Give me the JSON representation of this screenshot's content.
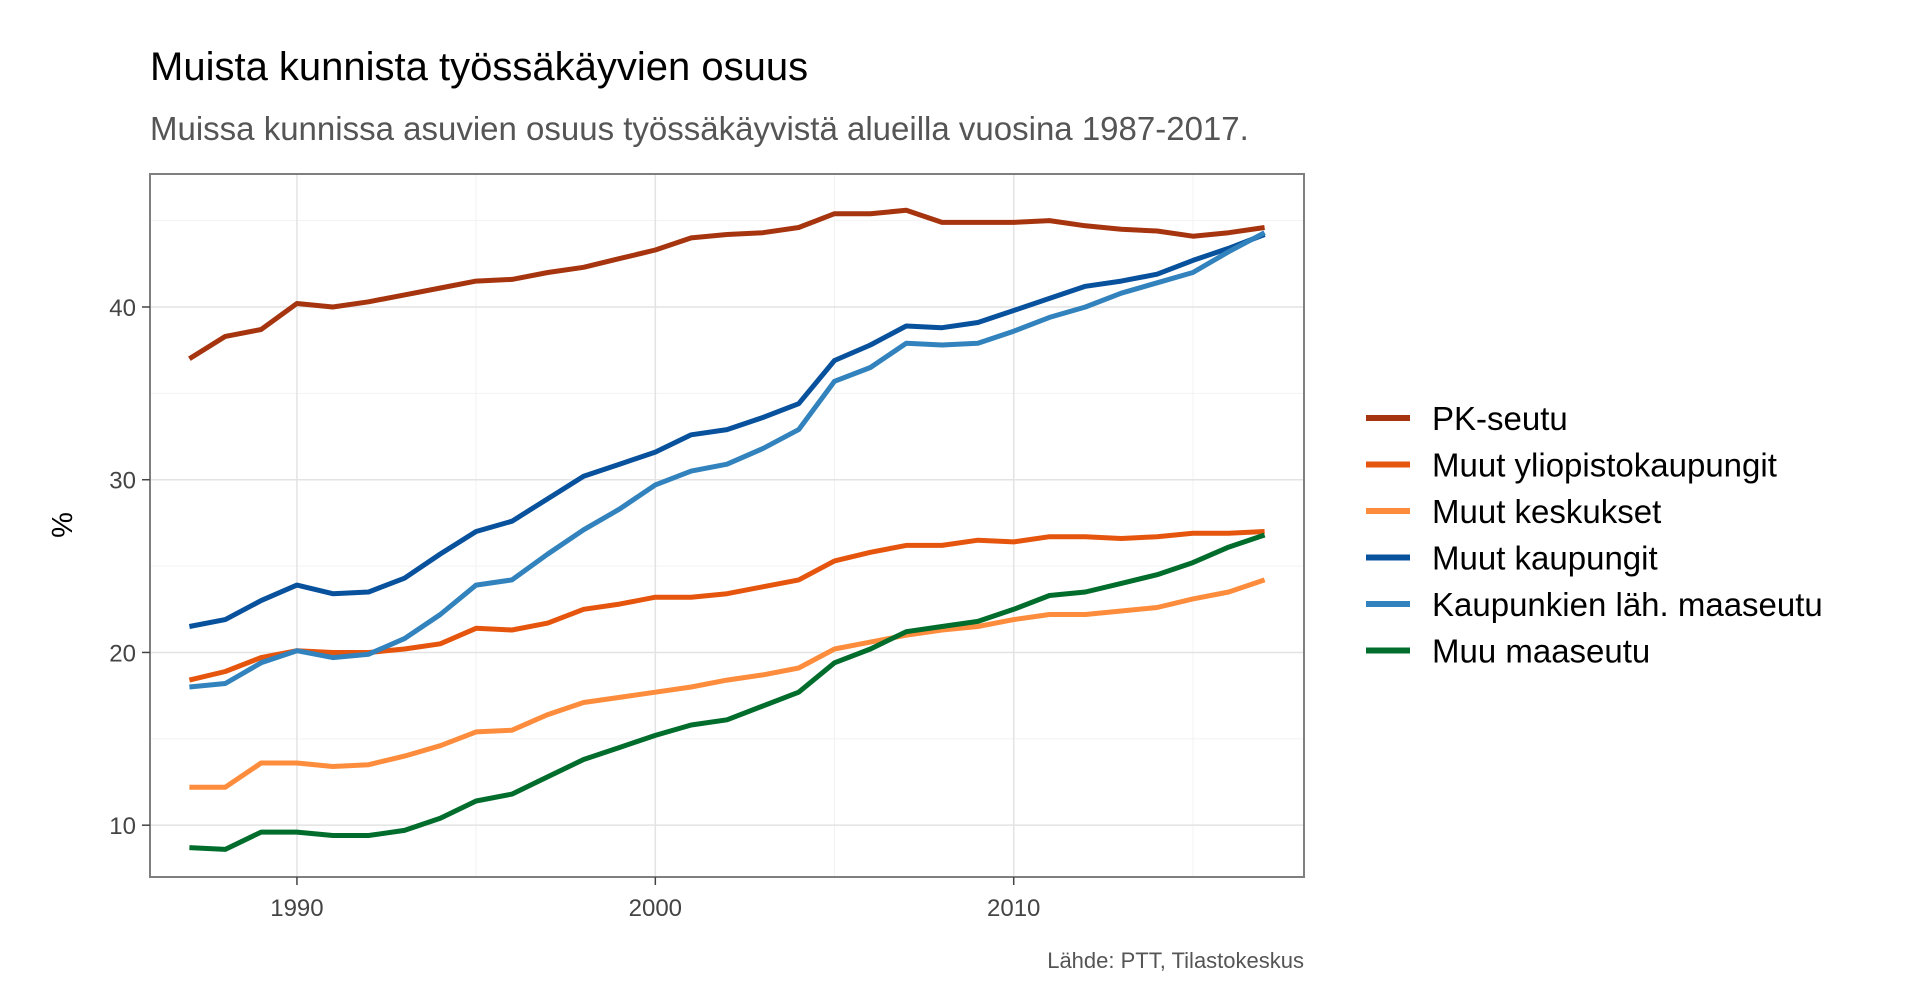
{
  "chart_data": {
    "type": "line",
    "title": "Muista kunnista työssäkäyvien osuus",
    "subtitle": "Muissa kunnissa asuvien osuus työssäkäyvistä alueilla vuosina 1987-2017.",
    "ylabel": "%",
    "xlabel": "",
    "caption": "Lähde: PTT, Tilastokeskus",
    "xlim": [
      1985.9,
      2018.1
    ],
    "ylim": [
      7,
      47.7
    ],
    "xticks": [
      1990,
      2000,
      2010
    ],
    "xtick_labels": [
      "1990",
      "2000",
      "2010"
    ],
    "yticks": [
      10,
      20,
      30,
      40
    ],
    "ytick_labels": [
      "10",
      "20",
      "30",
      "40"
    ],
    "grid": true,
    "legend": "right",
    "x": [
      1987,
      1988,
      1989,
      1990,
      1991,
      1992,
      1993,
      1994,
      1995,
      1996,
      1997,
      1998,
      1999,
      2000,
      2001,
      2002,
      2003,
      2004,
      2005,
      2006,
      2007,
      2008,
      2009,
      2010,
      2011,
      2012,
      2013,
      2014,
      2015,
      2016,
      2017
    ],
    "series": [
      {
        "name": "PK-seutu",
        "color": "#a6350f",
        "values": [
          37.0,
          38.3,
          38.7,
          40.2,
          40.0,
          40.3,
          40.7,
          41.1,
          41.5,
          41.6,
          42.0,
          42.3,
          42.8,
          43.3,
          44.0,
          44.2,
          44.3,
          44.6,
          45.4,
          45.4,
          45.6,
          44.9,
          44.9,
          44.9,
          45.0,
          44.7,
          44.5,
          44.4,
          44.1,
          44.3,
          44.6
        ]
      },
      {
        "name": "Muut yliopistokaupungit",
        "color": "#e6550d",
        "values": [
          18.4,
          18.9,
          19.7,
          20.1,
          20.0,
          20.0,
          20.2,
          20.5,
          21.4,
          21.3,
          21.7,
          22.5,
          22.8,
          23.2,
          23.2,
          23.4,
          23.8,
          24.2,
          25.3,
          25.8,
          26.2,
          26.2,
          26.5,
          26.4,
          26.7,
          26.7,
          26.6,
          26.7,
          26.9,
          26.9,
          27.0
        ]
      },
      {
        "name": "Muut keskukset",
        "color": "#fd8d3c",
        "values": [
          12.2,
          12.2,
          13.6,
          13.6,
          13.4,
          13.5,
          14.0,
          14.6,
          15.4,
          15.5,
          16.4,
          17.1,
          17.4,
          17.7,
          18.0,
          18.4,
          18.7,
          19.1,
          20.2,
          20.6,
          21.0,
          21.3,
          21.5,
          21.9,
          22.2,
          22.2,
          22.4,
          22.6,
          23.1,
          23.5,
          24.2
        ]
      },
      {
        "name": "Muut kaupungit",
        "color": "#08519c",
        "values": [
          21.5,
          21.9,
          23.0,
          23.9,
          23.4,
          23.5,
          24.3,
          25.7,
          27.0,
          27.6,
          28.9,
          30.2,
          30.9,
          31.6,
          32.6,
          32.9,
          33.6,
          34.4,
          36.9,
          37.8,
          38.9,
          38.8,
          39.1,
          39.8,
          40.5,
          41.2,
          41.5,
          41.9,
          42.7,
          43.4,
          44.2
        ]
      },
      {
        "name": "Kaupunkien läh. maaseutu",
        "color": "#3182bd",
        "values": [
          18.0,
          18.2,
          19.4,
          20.1,
          19.7,
          19.9,
          20.8,
          22.2,
          23.9,
          24.2,
          25.7,
          27.1,
          28.3,
          29.7,
          30.5,
          30.9,
          31.8,
          32.9,
          35.7,
          36.5,
          37.9,
          37.8,
          37.9,
          38.6,
          39.4,
          40.0,
          40.8,
          41.4,
          42.0,
          43.2,
          44.3
        ]
      },
      {
        "name": "Muu maaseutu",
        "color": "#006d2c",
        "values": [
          8.7,
          8.6,
          9.6,
          9.6,
          9.4,
          9.4,
          9.7,
          10.4,
          11.4,
          11.8,
          12.8,
          13.8,
          14.5,
          15.2,
          15.8,
          16.1,
          16.9,
          17.7,
          19.4,
          20.2,
          21.2,
          21.5,
          21.8,
          22.5,
          23.3,
          23.5,
          24.0,
          24.5,
          25.2,
          26.1,
          26.8
        ]
      }
    ]
  }
}
